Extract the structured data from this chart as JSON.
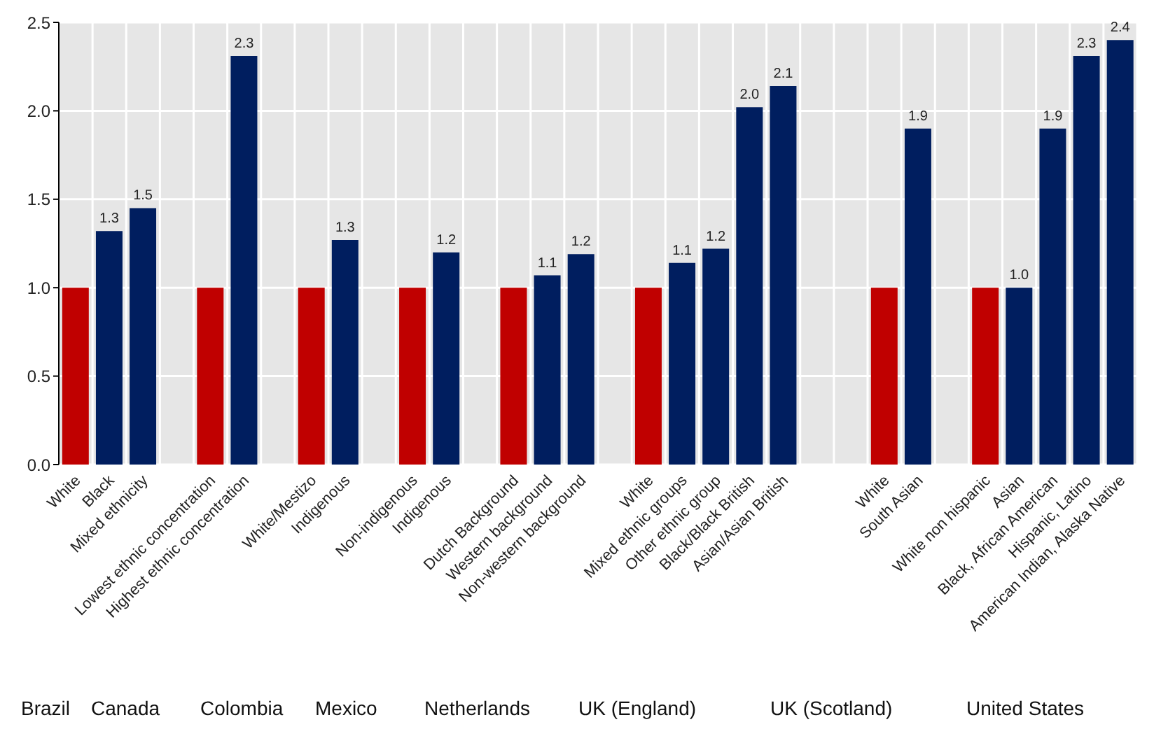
{
  "chart_data": {
    "type": "bar",
    "categories": [
      "White",
      "Black",
      "Mixed ethnicity",
      null,
      "Lowest ethnic concentration",
      "Highest ethnic concentration",
      null,
      "White/Mestizo",
      "Indigenous",
      null,
      "Non-indigenous",
      "Indigenous",
      null,
      "Dutch Background",
      "Western background",
      "Non-western background",
      null,
      "White",
      "Mixed ethnic groups",
      "Other ethnic group",
      "Black/Black British",
      "Asian/Asian British",
      null,
      null,
      "White",
      "South Asian",
      null,
      "White non hispanic",
      "Asian",
      "Black, African American",
      "Hispanic, Latino",
      "American Indian, Alaska Native"
    ],
    "values": [
      1.0,
      1.32,
      1.45,
      null,
      1.0,
      2.31,
      null,
      1.0,
      1.27,
      null,
      1.0,
      1.2,
      null,
      1.0,
      1.07,
      1.19,
      null,
      1.0,
      1.14,
      1.22,
      2.02,
      2.14,
      null,
      null,
      1.0,
      1.9,
      null,
      1.0,
      1.0,
      1.9,
      2.31,
      2.4
    ],
    "colors": [
      "#c00000",
      "#001e5f",
      "#001e5f",
      null,
      "#c00000",
      "#001e5f",
      null,
      "#c00000",
      "#001e5f",
      null,
      "#c00000",
      "#001e5f",
      null,
      "#c00000",
      "#001e5f",
      "#001e5f",
      null,
      "#c00000",
      "#001e5f",
      "#001e5f",
      "#001e5f",
      "#001e5f",
      null,
      null,
      "#c00000",
      "#001e5f",
      null,
      "#c00000",
      "#001e5f",
      "#001e5f",
      "#001e5f",
      "#001e5f"
    ],
    "value_labels": [
      null,
      "1.3",
      "1.5",
      null,
      null,
      "2.3",
      null,
      null,
      "1.3",
      null,
      null,
      "1.2",
      null,
      null,
      "1.1",
      "1.2",
      null,
      null,
      "1.1",
      "1.2",
      "2.0",
      "2.1",
      null,
      null,
      null,
      "1.9",
      null,
      null,
      "1.0",
      "1.9",
      "2.3",
      "2.4"
    ],
    "ylim": [
      0,
      2.5
    ],
    "yticks": [
      {
        "value": 0,
        "label": "0.0"
      },
      0.5,
      {
        "value": 1,
        "label": "1.0"
      },
      1.5,
      {
        "value": 2,
        "label": "2.0"
      },
      2.5
    ],
    "grid": true,
    "annotations": [
      "Brazil",
      "Canada",
      "Colombia",
      "Mexico",
      "Netherlands",
      "UK (England)",
      "UK (Scotland)",
      "United States"
    ]
  }
}
